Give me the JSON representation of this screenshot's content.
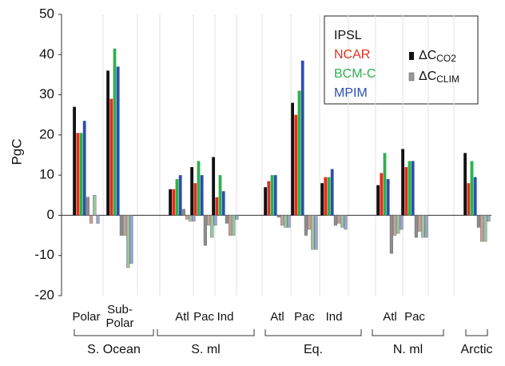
{
  "chart_data": {
    "type": "bar",
    "y_label": "PgC",
    "ylim": [
      -20,
      50
    ],
    "yticks": [
      -20,
      -10,
      0,
      10,
      20,
      30,
      40,
      50
    ],
    "categories": [
      "Polar",
      "Sub-\nPolar",
      "Atl",
      "Pac",
      "Ind",
      "Atl",
      "Pac",
      "Ind",
      "Atl",
      "Pac",
      null
    ],
    "groups": [
      "S. Ocean",
      "S. ml",
      "Eq.",
      "N. ml",
      "Arctic"
    ],
    "kinds": [
      {
        "key": "co2",
        "label": "ΔC",
        "sub": "CO2"
      },
      {
        "key": "clim",
        "label": "ΔC",
        "sub": "CLIM"
      }
    ],
    "series": [
      {
        "name": "IPSL",
        "color": "#111111",
        "clim_color": "#8c8c8c",
        "co2": [
          27,
          36,
          6.5,
          12,
          14.5,
          7,
          28,
          8,
          7.5,
          16.5,
          15.5
        ],
        "clim": [
          4.5,
          -5,
          1.5,
          -7.5,
          -2,
          -0.5,
          -5,
          -2.5,
          -9.5,
          -5.5,
          -3
        ]
      },
      {
        "name": "NCAR",
        "color": "#e0301e",
        "clim_color": "#c9a09a",
        "co2": [
          20.5,
          29,
          6.5,
          8,
          4.5,
          8.5,
          25,
          9.5,
          10.5,
          12,
          8
        ],
        "clim": [
          -2,
          -5,
          -1,
          -2.5,
          -5,
          -2.5,
          -3.5,
          -2,
          -5,
          -4,
          -6.5
        ]
      },
      {
        "name": "BCM-C",
        "color": "#2bb24c",
        "clim_color": "#98c4a0",
        "co2": [
          20.5,
          41.5,
          9,
          13.5,
          10,
          10,
          31,
          9.5,
          15.5,
          13.5,
          13.5
        ],
        "clim": [
          5,
          -13,
          -1.5,
          -5.5,
          -5,
          -3,
          -8.5,
          -3,
          -4.5,
          -5.5,
          -6.5
        ]
      },
      {
        "name": "MPIM",
        "color": "#2c4faf",
        "clim_color": "#98a6c8",
        "co2": [
          23.5,
          37,
          10,
          10,
          6,
          10,
          38.5,
          11.5,
          9,
          13.5,
          9.5
        ],
        "clim": [
          -2,
          -12,
          -1.5,
          -2.5,
          -1,
          -3,
          -8.5,
          -3.5,
          -3.5,
          -5.5,
          -1.5
        ]
      }
    ]
  }
}
